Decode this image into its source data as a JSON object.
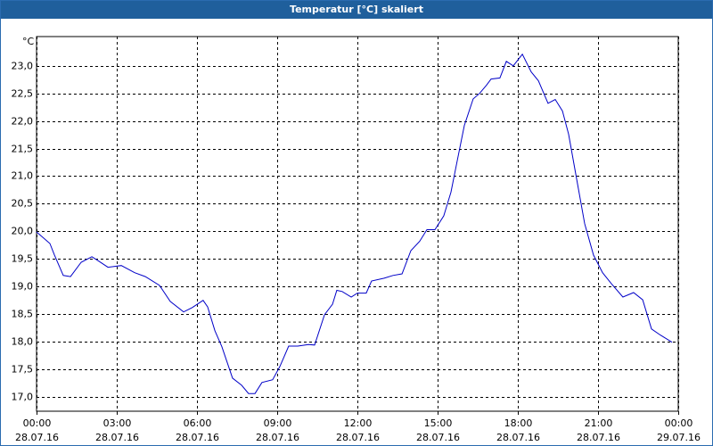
{
  "chart_data": {
    "type": "line",
    "title": "Temperatur [°C] skaliert",
    "ylabel": "°C",
    "x": [
      0,
      0.5,
      0.67,
      1,
      1.27,
      1.67,
      2.07,
      2.33,
      2.67,
      3.17,
      3.67,
      4.07,
      4.6,
      5,
      5.5,
      5.83,
      6.23,
      6.4,
      6.67,
      6.93,
      7.33,
      7.67,
      7.93,
      8.17,
      8.43,
      8.83,
      9.1,
      9.43,
      9.77,
      10.17,
      10.4,
      10.77,
      11.07,
      11.23,
      11.43,
      11.77,
      12,
      12.33,
      12.53,
      13,
      13.33,
      13.67,
      14,
      14.33,
      14.6,
      14.9,
      15.23,
      15.5,
      15.73,
      16,
      16.33,
      16.57,
      16.83,
      17,
      17.33,
      17.57,
      17.83,
      18.17,
      18.5,
      18.77,
      19.13,
      19.4,
      19.67,
      19.9,
      20.17,
      20.5,
      20.83,
      21.17,
      21.5,
      21.93,
      22.33,
      22.67,
      23,
      23.33,
      23.77
    ],
    "series": [
      {
        "color": "#0000c8",
        "values": [
          19.99,
          19.78,
          19.57,
          19.2,
          19.18,
          19.44,
          19.54,
          19.46,
          19.35,
          19.38,
          19.25,
          19.18,
          19.02,
          18.73,
          18.54,
          18.62,
          18.75,
          18.63,
          18.2,
          17.91,
          17.34,
          17.21,
          17.06,
          17.06,
          17.26,
          17.31,
          17.55,
          17.92,
          17.92,
          17.95,
          17.94,
          18.49,
          18.68,
          18.93,
          18.91,
          18.81,
          18.88,
          18.88,
          19.1,
          19.15,
          19.2,
          19.23,
          19.65,
          19.82,
          20.03,
          20.03,
          20.28,
          20.71,
          21.27,
          21.92,
          22.4,
          22.5,
          22.65,
          22.76,
          22.78,
          23.08,
          23.0,
          23.21,
          22.89,
          22.73,
          22.32,
          22.39,
          22.18,
          21.76,
          21.03,
          20.14,
          19.57,
          19.25,
          19.05,
          18.81,
          18.89,
          18.76,
          18.23,
          18.12,
          17.99
        ]
      }
    ],
    "xlim": [
      0,
      24
    ],
    "xticks": [
      {
        "value": 0,
        "label": "00:00\n28.07.16"
      },
      {
        "value": 3,
        "label": "03:00\n28.07.16"
      },
      {
        "value": 6,
        "label": "06:00\n28.07.16"
      },
      {
        "value": 9,
        "label": "09:00\n28.07.16"
      },
      {
        "value": 12,
        "label": "12:00\n28.07.16"
      },
      {
        "value": 15,
        "label": "15:00\n28.07.16"
      },
      {
        "value": 18,
        "label": "18:00\n28.07.16"
      },
      {
        "value": 21,
        "label": "21:00\n28.07.16"
      },
      {
        "value": 24,
        "label": "00:00\n29.07.16"
      }
    ],
    "ylim": [
      16.74,
      23.53
    ],
    "yticks": [
      {
        "value": 17,
        "label": "17,0"
      },
      {
        "value": 17.5,
        "label": "17,5"
      },
      {
        "value": 18,
        "label": "18,0"
      },
      {
        "value": 18.5,
        "label": "18,5"
      },
      {
        "value": 19,
        "label": "19,0"
      },
      {
        "value": 19.5,
        "label": "19,5"
      },
      {
        "value": 20,
        "label": "20,0"
      },
      {
        "value": 20.5,
        "label": "20,5"
      },
      {
        "value": 21,
        "label": "21,0"
      },
      {
        "value": 21.5,
        "label": "21,5"
      },
      {
        "value": 22,
        "label": "22,0"
      },
      {
        "value": 22.5,
        "label": "22,5"
      },
      {
        "value": 23,
        "label": "23,0"
      }
    ],
    "grid": true
  }
}
